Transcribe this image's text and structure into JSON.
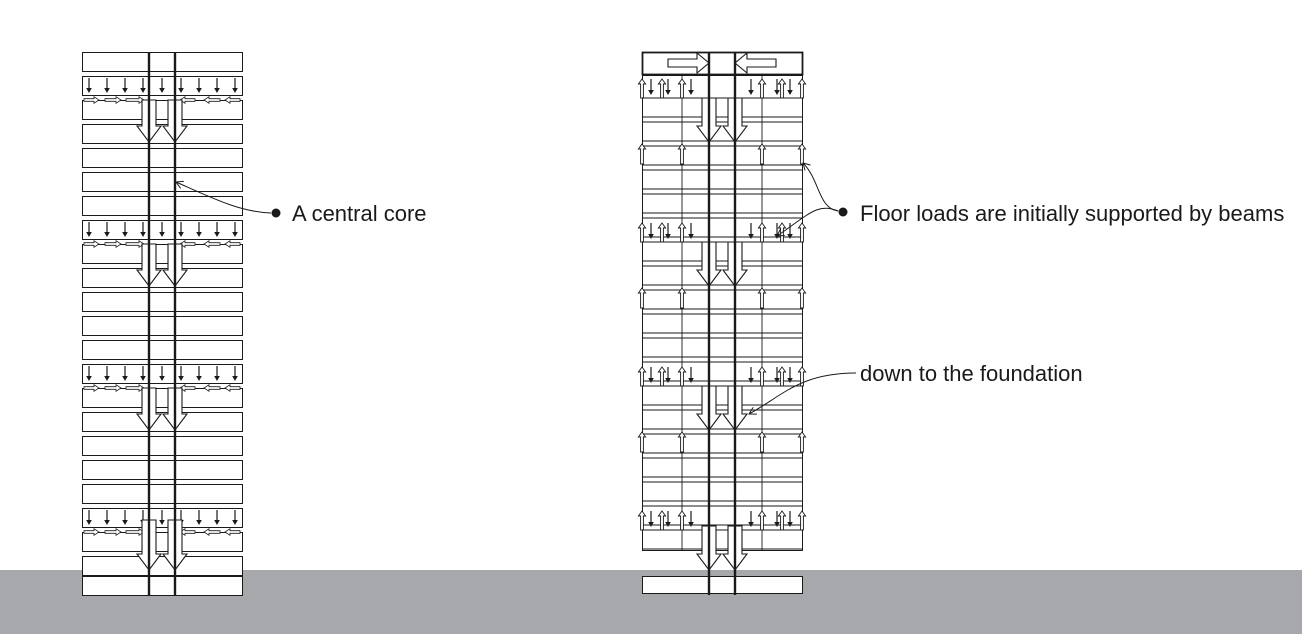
{
  "colors": {
    "ground": "#a7a8ab",
    "line": "#1a1a1a",
    "background": "#ffffff"
  },
  "annotations": {
    "core": "A central core",
    "beams": "Floor loads are initially supported by beams",
    "foundation": "down to the foundation"
  }
}
